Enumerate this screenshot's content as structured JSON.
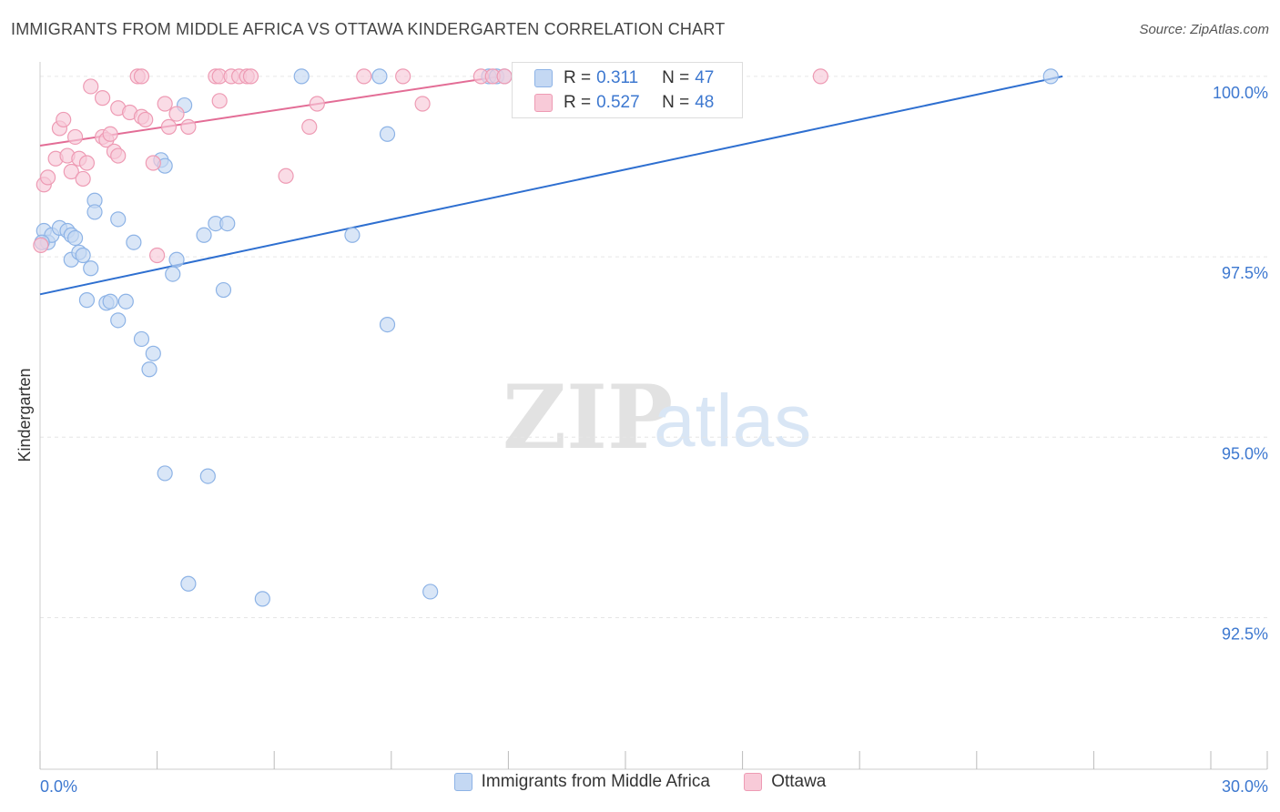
{
  "title": "IMMIGRANTS FROM MIDDLE AFRICA VS OTTAWA KINDERGARTEN CORRELATION CHART",
  "source": "Source: ZipAtlas.com",
  "watermark": {
    "zip": "ZIP",
    "atlas": "atlas"
  },
  "colors": {
    "blue": "#3d78d0",
    "blue_fill": "#c4d8f3",
    "blue_line": "#2e6fd0",
    "pink": "#e36d96",
    "pink_fill": "#f8cad8",
    "axis_text": "#3d78d0",
    "grid": "#e6e6e6"
  },
  "stats_box": [
    {
      "series": "Immigrants from Middle Africa",
      "r_label": "R =",
      "r_value": "0.311",
      "n_label": "N =",
      "n_value": "47"
    },
    {
      "series": "Ottawa",
      "r_label": "R =",
      "r_value": "0.527",
      "n_label": "N =",
      "n_value": "48"
    }
  ],
  "legend": [
    {
      "label": "Immigrants from Middle Africa",
      "icon": "blue-square-icon"
    },
    {
      "label": "Ottawa",
      "icon": "pink-square-icon"
    }
  ],
  "chart_data": {
    "type": "scatter",
    "title": "IMMIGRANTS FROM MIDDLE AFRICA VS OTTAWA KINDERGARTEN CORRELATION CHART",
    "xlabel": "",
    "ylabel": "Kindergarten",
    "xlim": [
      0,
      30
    ],
    "ylim": [
      90.4,
      100.2
    ],
    "x_tick_labels": [
      "0.0%",
      "30.0%"
    ],
    "y_ticks": [
      92.5,
      95.0,
      97.5,
      100.0
    ],
    "y_tick_labels": [
      "92.5%",
      "95.0%",
      "97.5%",
      "100.0%"
    ],
    "grid": true,
    "series": [
      {
        "name": "Immigrants from Middle Africa",
        "color": "#3d78d0",
        "trend": {
          "x": [
            0,
            26.2
          ],
          "y": [
            96.98,
            100.0
          ]
        },
        "points": [
          [
            0.1,
            97.86
          ],
          [
            0.2,
            97.7
          ],
          [
            0.3,
            97.8
          ],
          [
            0.5,
            97.9
          ],
          [
            0.7,
            97.86
          ],
          [
            0.8,
            97.8
          ],
          [
            0.9,
            97.76
          ],
          [
            0.8,
            97.46
          ],
          [
            1.0,
            97.56
          ],
          [
            1.1,
            97.52
          ],
          [
            1.3,
            97.34
          ],
          [
            1.2,
            96.9
          ],
          [
            1.7,
            96.86
          ],
          [
            1.8,
            96.88
          ],
          [
            2.2,
            96.88
          ],
          [
            1.4,
            98.28
          ],
          [
            1.4,
            98.12
          ],
          [
            2.0,
            98.02
          ],
          [
            2.4,
            97.7
          ],
          [
            2.0,
            96.62
          ],
          [
            2.6,
            96.36
          ],
          [
            2.9,
            96.16
          ],
          [
            2.8,
            95.94
          ],
          [
            3.1,
            98.84
          ],
          [
            3.2,
            98.76
          ],
          [
            3.4,
            97.26
          ],
          [
            3.5,
            97.46
          ],
          [
            3.7,
            99.6
          ],
          [
            4.2,
            97.8
          ],
          [
            4.5,
            97.96
          ],
          [
            4.8,
            97.96
          ],
          [
            4.7,
            97.04
          ],
          [
            3.2,
            94.5
          ],
          [
            4.3,
            94.46
          ],
          [
            3.8,
            92.97
          ],
          [
            5.7,
            92.76
          ],
          [
            6.7,
            100.0
          ],
          [
            8.0,
            97.8
          ],
          [
            8.7,
            100.0
          ],
          [
            8.9,
            99.2
          ],
          [
            8.9,
            96.56
          ],
          [
            10.0,
            92.86
          ],
          [
            11.5,
            100.0
          ],
          [
            11.7,
            100.0
          ],
          [
            11.9,
            100.0
          ],
          [
            25.9,
            100.0
          ],
          [
            0.05,
            97.7
          ]
        ]
      },
      {
        "name": "Ottawa",
        "color": "#e36d96",
        "trend": {
          "x": [
            0,
            11.8
          ],
          "y": [
            99.04,
            100.0
          ]
        },
        "points": [
          [
            0.1,
            98.5
          ],
          [
            0.2,
            98.6
          ],
          [
            0.4,
            98.86
          ],
          [
            0.5,
            99.28
          ],
          [
            0.6,
            99.4
          ],
          [
            0.7,
            98.9
          ],
          [
            0.8,
            98.68
          ],
          [
            0.9,
            99.16
          ],
          [
            1.0,
            98.86
          ],
          [
            1.1,
            98.58
          ],
          [
            1.2,
            98.8
          ],
          [
            1.3,
            99.86
          ],
          [
            1.6,
            99.7
          ],
          [
            1.6,
            99.16
          ],
          [
            1.7,
            99.12
          ],
          [
            1.8,
            99.2
          ],
          [
            1.9,
            98.96
          ],
          [
            2.0,
            99.56
          ],
          [
            2.3,
            99.5
          ],
          [
            2.5,
            100.0
          ],
          [
            2.6,
            99.44
          ],
          [
            2.7,
            99.4
          ],
          [
            2.9,
            98.8
          ],
          [
            3.0,
            97.52
          ],
          [
            3.2,
            99.62
          ],
          [
            3.3,
            99.3
          ],
          [
            3.5,
            99.48
          ],
          [
            3.8,
            99.3
          ],
          [
            4.5,
            100.0
          ],
          [
            4.6,
            100.0
          ],
          [
            4.6,
            99.66
          ],
          [
            4.9,
            100.0
          ],
          [
            5.1,
            100.0
          ],
          [
            5.3,
            100.0
          ],
          [
            5.4,
            100.0
          ],
          [
            2.6,
            100.0
          ],
          [
            6.3,
            98.62
          ],
          [
            6.9,
            99.3
          ],
          [
            7.1,
            99.62
          ],
          [
            8.3,
            100.0
          ],
          [
            9.3,
            100.0
          ],
          [
            9.8,
            99.62
          ],
          [
            11.3,
            100.0
          ],
          [
            11.6,
            100.0
          ],
          [
            11.9,
            100.0
          ],
          [
            20.0,
            100.0
          ],
          [
            2.0,
            98.9
          ],
          [
            0.02,
            97.66
          ]
        ]
      }
    ]
  }
}
